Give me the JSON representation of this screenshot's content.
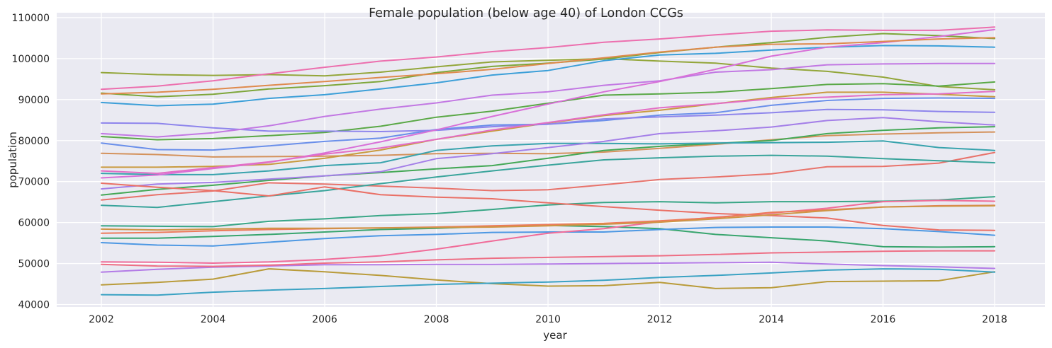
{
  "chart_data": {
    "type": "line",
    "title": "Female population (below age 40) of London CCGs",
    "xlabel": "year",
    "ylabel": "population",
    "xlim": [
      2001.2,
      2018.9
    ],
    "ylim": [
      39400,
      111200
    ],
    "x_ticks": [
      "2002",
      "2004",
      "2006",
      "2008",
      "2010",
      "2012",
      "2014",
      "2016",
      "2018"
    ],
    "y_ticks": [
      "40000",
      "50000",
      "60000",
      "70000",
      "80000",
      "90000",
      "100000",
      "110000"
    ],
    "grid": true,
    "legend": "none",
    "x": [
      2002,
      2003,
      2004,
      2005,
      2006,
      2007,
      2008,
      2009,
      2010,
      2011,
      2012,
      2013,
      2014,
      2015,
      2016,
      2017,
      2018
    ],
    "series": [
      {
        "color": "#e8736b",
        "values": [
          65500,
          66800,
          67700,
          69700,
          69400,
          68900,
          68400,
          67800,
          68000,
          69200,
          70500,
          71100,
          71900,
          73600,
          73700,
          74500,
          77100
        ]
      },
      {
        "color": "#d4925c",
        "values": [
          76900,
          76600,
          76000,
          76100,
          76200,
          76400,
          76800,
          76900,
          76800,
          77200,
          78100,
          79100,
          80200,
          81200,
          81600,
          81900,
          82100
        ]
      },
      {
        "color": "#c99a3f",
        "values": [
          73500,
          73500,
          73700,
          74200,
          75700,
          77700,
          80300,
          82300,
          84300,
          86100,
          87400,
          89000,
          90500,
          91800,
          91800,
          91300,
          90700
        ]
      },
      {
        "color": "#b99b3a",
        "values": [
          44800,
          45400,
          46200,
          48700,
          48000,
          47100,
          46000,
          45100,
          44500,
          44600,
          45400,
          43900,
          44100,
          45600,
          45700,
          45800,
          48000
        ]
      },
      {
        "color": "#93a63a",
        "values": [
          96600,
          96100,
          95900,
          96100,
          95800,
          96700,
          98000,
          99200,
          99600,
          100000,
          99400,
          98900,
          97700,
          96900,
          95500,
          93200,
          92400
        ]
      },
      {
        "color": "#7ea63a",
        "values": [
          91600,
          90700,
          91300,
          92600,
          93400,
          94400,
          96600,
          98100,
          98900,
          99900,
          101500,
          102800,
          103900,
          105200,
          106100,
          105600,
          104900
        ]
      },
      {
        "color": "#5aa846",
        "values": [
          81000,
          80200,
          80500,
          81200,
          82000,
          83500,
          85700,
          87200,
          89100,
          91100,
          91400,
          91800,
          92700,
          93700,
          93900,
          93300,
          94300
        ]
      },
      {
        "color": "#44a856",
        "values": [
          66700,
          68100,
          69100,
          70300,
          71400,
          72200,
          73100,
          73900,
          75700,
          77600,
          78600,
          79300,
          80000,
          81700,
          82500,
          83100,
          83400
        ]
      },
      {
        "color": "#38a56e",
        "values": [
          56200,
          56200,
          56600,
          57100,
          57700,
          58300,
          58600,
          59100,
          59300,
          59000,
          58500,
          57100,
          56300,
          55500,
          54100,
          54000,
          54100
        ]
      },
      {
        "color": "#38a686",
        "values": [
          59200,
          59100,
          59000,
          60300,
          60900,
          61700,
          62200,
          63200,
          64300,
          64900,
          65100,
          64800,
          65100,
          65100,
          65200,
          65500,
          66300
        ]
      },
      {
        "color": "#39a49b",
        "values": [
          64200,
          63700,
          65100,
          66500,
          67800,
          69500,
          71100,
          72600,
          74000,
          75300,
          75800,
          76200,
          76400,
          76200,
          75600,
          75100,
          74600
        ]
      },
      {
        "color": "#38a3ad",
        "values": [
          72000,
          71700,
          71700,
          72600,
          73900,
          74600,
          77600,
          78700,
          79300,
          79300,
          79200,
          79400,
          79500,
          79600,
          79900,
          78300,
          77600
        ]
      },
      {
        "color": "#3aa2c3",
        "values": [
          42400,
          42300,
          43000,
          43500,
          43900,
          44400,
          44900,
          45200,
          45500,
          45900,
          46600,
          47100,
          47700,
          48400,
          48700,
          48600,
          47900
        ]
      },
      {
        "color": "#3c9fd8",
        "values": [
          89300,
          88500,
          88900,
          90300,
          91200,
          92600,
          94100,
          96000,
          97100,
          99500,
          100900,
          101300,
          102100,
          102800,
          103200,
          103100,
          102800
        ]
      },
      {
        "color": "#4d98e3",
        "values": [
          55100,
          54500,
          54300,
          55200,
          56100,
          56800,
          57100,
          57600,
          57700,
          57700,
          58300,
          58800,
          58900,
          58900,
          58500,
          57800,
          56900
        ]
      },
      {
        "color": "#6a8fea",
        "values": [
          79400,
          77800,
          77700,
          78700,
          79800,
          80600,
          82700,
          83800,
          84000,
          84900,
          86200,
          86800,
          88600,
          89800,
          90300,
          90400,
          90300
        ]
      },
      {
        "color": "#8e85ec",
        "values": [
          84300,
          84200,
          83100,
          82300,
          82300,
          82200,
          82500,
          83400,
          84000,
          85300,
          85800,
          86200,
          86800,
          87600,
          87500,
          87100,
          86900
        ]
      },
      {
        "color": "#a47fe8",
        "values": [
          68200,
          69400,
          69800,
          70600,
          71400,
          72400,
          75600,
          76800,
          78300,
          79800,
          81700,
          82400,
          83300,
          84900,
          85600,
          84600,
          83800
        ]
      },
      {
        "color": "#b37be6",
        "values": [
          47900,
          48600,
          49100,
          49400,
          49700,
          49700,
          49800,
          49800,
          49900,
          50000,
          50100,
          50200,
          50300,
          49900,
          49500,
          49200,
          48800
        ]
      },
      {
        "color": "#c278e3",
        "values": [
          81700,
          80900,
          81900,
          83600,
          85900,
          87700,
          89200,
          91100,
          91900,
          93500,
          94600,
          96700,
          97300,
          98500,
          98700,
          98800,
          98800
        ]
      },
      {
        "color": "#d870d8",
        "values": [
          70900,
          71600,
          73200,
          74700,
          77000,
          79700,
          82600,
          85900,
          88900,
          91900,
          94400,
          97400,
          100600,
          102800,
          103900,
          105400,
          107100
        ]
      },
      {
        "color": "#e36ec5",
        "values": [
          72600,
          72000,
          73400,
          74800,
          76700,
          78200,
          80300,
          82600,
          84400,
          86300,
          88000,
          89000,
          90200,
          90600,
          91200,
          91400,
          92000
        ]
      },
      {
        "color": "#ec6fae",
        "values": [
          92500,
          93300,
          94600,
          96300,
          97900,
          99400,
          100400,
          101700,
          102700,
          104000,
          104800,
          105800,
          106700,
          107000,
          106900,
          106900,
          107700
        ]
      },
      {
        "color": "#f06c99",
        "values": [
          50400,
          50300,
          50100,
          50400,
          51000,
          51900,
          53500,
          55500,
          57400,
          58500,
          60200,
          61300,
          62300,
          63500,
          65100,
          65400,
          65200
        ]
      },
      {
        "color": "#ee6e84",
        "values": [
          49800,
          49400,
          49300,
          49600,
          50100,
          50400,
          50900,
          51300,
          51500,
          51700,
          51900,
          52200,
          52600,
          52800,
          53000,
          53100,
          53100
        ]
      },
      {
        "color": "#ea7066",
        "values": [
          69600,
          68600,
          67800,
          66500,
          68700,
          66800,
          66200,
          65800,
          64800,
          63900,
          63000,
          62200,
          61700,
          61100,
          59300,
          58200,
          58100
        ]
      },
      {
        "color": "#ed7a5a",
        "values": [
          57400,
          57600,
          58000,
          58300,
          58500,
          58700,
          58900,
          59200,
          59500,
          59800,
          60400,
          61200,
          62500,
          63100,
          63800,
          64100,
          64200
        ]
      },
      {
        "color": "#df8a4d",
        "values": [
          91400,
          91800,
          92500,
          93500,
          94400,
          95400,
          96300,
          97400,
          98800,
          100200,
          101600,
          102800,
          103500,
          103600,
          104200,
          104800,
          105100
        ]
      },
      {
        "color": "#cf9545",
        "values": [
          58400,
          58200,
          58400,
          58600,
          58600,
          58700,
          58800,
          58900,
          59200,
          59600,
          60100,
          60900,
          61900,
          62900,
          63800,
          64000,
          64100
        ]
      }
    ]
  }
}
